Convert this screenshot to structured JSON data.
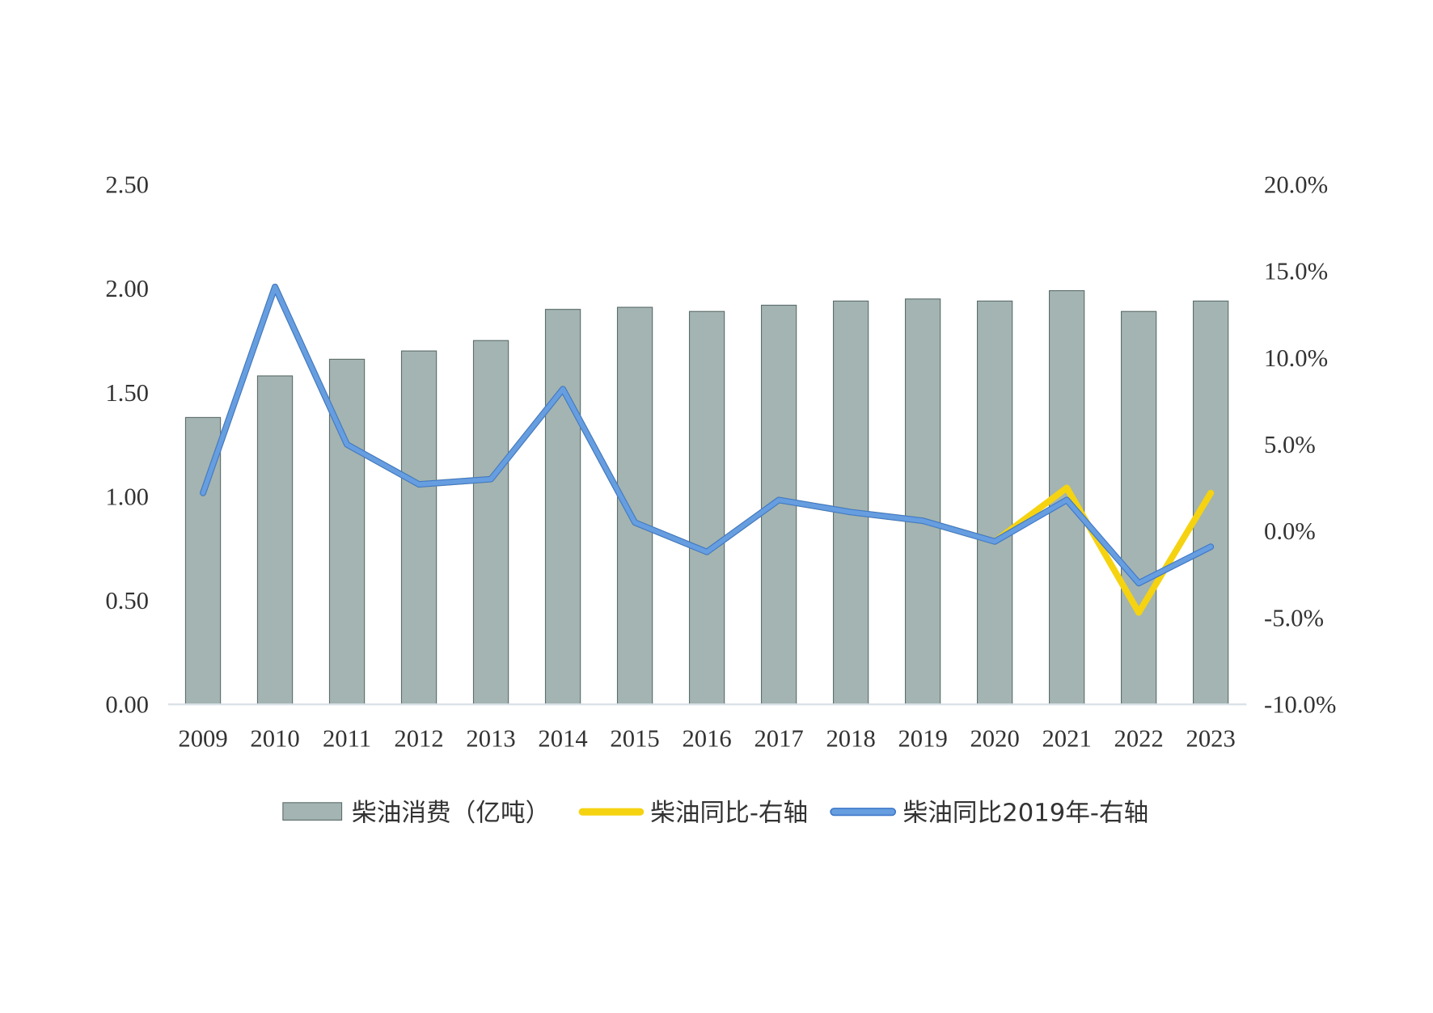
{
  "chart_data": {
    "type": "bar+line",
    "title": "",
    "categories": [
      "2009",
      "2010",
      "2011",
      "2012",
      "2013",
      "2014",
      "2015",
      "2016",
      "2017",
      "2018",
      "2019",
      "2020",
      "2021",
      "2022",
      "2023"
    ],
    "left_axis": {
      "ylim": [
        0,
        2.5
      ],
      "ticks": [
        "0.00",
        "0.50",
        "1.00",
        "1.50",
        "2.00",
        "2.50"
      ]
    },
    "right_axis": {
      "ylim": [
        -10,
        20
      ],
      "unit": "%",
      "ticks": [
        "-10.0%",
        "-5.0%",
        "0.0%",
        "5.0%",
        "10.0%",
        "15.0%",
        "20.0%"
      ]
    },
    "grid": false,
    "legend_position": "bottom",
    "series": [
      {
        "name": "柴油消费（亿吨）",
        "kind": "bar",
        "axis": "left",
        "color": "#a3b4b2",
        "values": [
          1.38,
          1.58,
          1.66,
          1.7,
          1.75,
          1.9,
          1.91,
          1.89,
          1.92,
          1.94,
          1.95,
          1.94,
          1.99,
          1.89,
          1.94
        ]
      },
      {
        "name": "柴油同比-右轴",
        "kind": "line",
        "axis": "right",
        "color": "#f5d311",
        "values": [
          2.2,
          14.1,
          5.0,
          2.7,
          3.0,
          8.2,
          0.5,
          -1.2,
          1.8,
          1.1,
          0.6,
          -0.6,
          2.5,
          -4.7,
          2.2
        ]
      },
      {
        "name": "柴油同比2019年-右轴",
        "kind": "line",
        "axis": "right",
        "color": "#679ee0",
        "values": [
          2.2,
          14.1,
          5.0,
          2.7,
          3.0,
          8.2,
          0.5,
          -1.2,
          1.8,
          1.1,
          0.6,
          -0.6,
          1.8,
          -3.0,
          -0.9
        ]
      }
    ]
  }
}
